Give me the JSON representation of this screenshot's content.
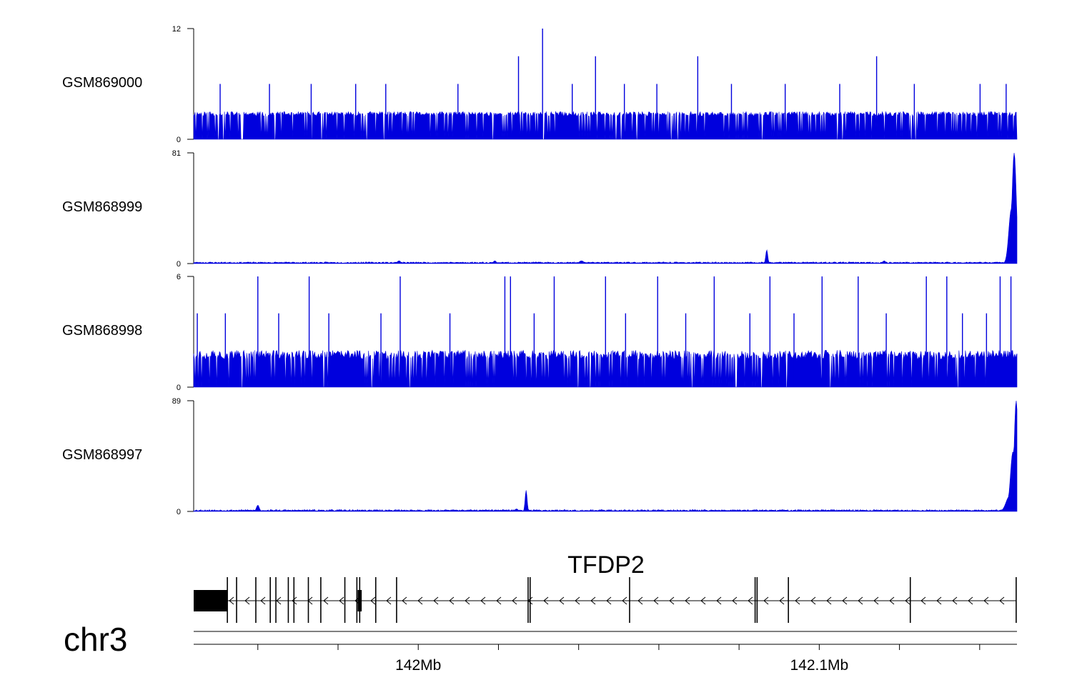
{
  "chart_data": {
    "type": "area",
    "region": {
      "chrom": "chr3",
      "start_mb": 141.9223,
      "end_mb": 142.1276
    },
    "colors": {
      "signal": "#0000dd",
      "axis": "#000000",
      "gene": "#000000"
    },
    "tracks": [
      {
        "name": "GSM869000",
        "ylim": [
          0,
          12
        ],
        "tick_labels": [
          "0",
          "12"
        ],
        "noise": {
          "base": [
            2.5,
            3
          ],
          "seed": 11,
          "zero_gaps": 0.18
        },
        "peaks": [
          {
            "x": 142.0093,
            "y": 12
          },
          {
            "x": 142.0033,
            "y": 9
          },
          {
            "x": 142.0225,
            "y": 9
          },
          {
            "x": 142.048,
            "y": 9
          },
          {
            "x": 142.0926,
            "y": 9
          },
          {
            "x": 141.9289,
            "y": 6
          },
          {
            "x": 141.9412,
            "y": 6
          },
          {
            "x": 141.9516,
            "y": 6
          },
          {
            "x": 141.9627,
            "y": 6
          },
          {
            "x": 141.9702,
            "y": 6
          },
          {
            "x": 141.9882,
            "y": 6
          },
          {
            "x": 142.0167,
            "y": 6
          },
          {
            "x": 142.0297,
            "y": 6
          },
          {
            "x": 142.0378,
            "y": 6
          },
          {
            "x": 142.0564,
            "y": 6
          },
          {
            "x": 142.0698,
            "y": 6
          },
          {
            "x": 142.0834,
            "y": 6
          },
          {
            "x": 142.102,
            "y": 6
          },
          {
            "x": 142.1184,
            "y": 6
          },
          {
            "x": 142.1249,
            "y": 6
          }
        ]
      },
      {
        "name": "GSM868999",
        "ylim": [
          0,
          81
        ],
        "tick_labels": [
          "0",
          "81"
        ],
        "noise": {
          "base": [
            0.3,
            1.2
          ],
          "seed": 23,
          "zero_gaps": 0.0
        },
        "bumps": [
          {
            "x": 142.0652,
            "height": 10,
            "width": 0.00035
          },
          {
            "x": 141.9735,
            "height": 2,
            "width": 0.0006
          },
          {
            "x": 141.9974,
            "height": 2,
            "width": 0.0005
          },
          {
            "x": 142.019,
            "height": 2,
            "width": 0.0008
          },
          {
            "x": 142.0945,
            "height": 2,
            "width": 0.0005
          },
          {
            "x": 142.1269,
            "height": 81,
            "width": 0.00075
          },
          {
            "x": 142.1262,
            "height": 40,
            "width": 0.0009
          }
        ]
      },
      {
        "name": "GSM868998",
        "ylim": [
          0,
          6
        ],
        "tick_labels": [
          "0",
          "6"
        ],
        "noise": {
          "base": [
            1.5,
            2
          ],
          "seed": 37,
          "zero_gaps": 0.12
        },
        "peaks": [
          {
            "x": 141.9383,
            "y": 6
          },
          {
            "x": 141.9511,
            "y": 6
          },
          {
            "x": 141.9738,
            "y": 6
          },
          {
            "x": 141.9999,
            "y": 6
          },
          {
            "x": 142.0013,
            "y": 6
          },
          {
            "x": 142.0122,
            "y": 6
          },
          {
            "x": 142.025,
            "y": 6
          },
          {
            "x": 142.038,
            "y": 6
          },
          {
            "x": 142.0521,
            "y": 6
          },
          {
            "x": 142.066,
            "y": 6
          },
          {
            "x": 142.079,
            "y": 6
          },
          {
            "x": 142.088,
            "y": 6
          },
          {
            "x": 142.105,
            "y": 6
          },
          {
            "x": 142.1101,
            "y": 6
          },
          {
            "x": 142.1234,
            "y": 6
          },
          {
            "x": 142.1261,
            "y": 6
          },
          {
            "x": 141.9232,
            "y": 4
          },
          {
            "x": 141.9302,
            "y": 4
          },
          {
            "x": 141.9435,
            "y": 4
          },
          {
            "x": 141.956,
            "y": 4
          },
          {
            "x": 141.969,
            "y": 4
          },
          {
            "x": 141.9862,
            "y": 4
          },
          {
            "x": 142.0072,
            "y": 4
          },
          {
            "x": 142.03,
            "y": 4
          },
          {
            "x": 142.045,
            "y": 4
          },
          {
            "x": 142.061,
            "y": 4
          },
          {
            "x": 142.072,
            "y": 4
          },
          {
            "x": 142.095,
            "y": 4
          },
          {
            "x": 142.114,
            "y": 4
          },
          {
            "x": 142.12,
            "y": 4
          }
        ]
      },
      {
        "name": "GSM868997",
        "ylim": [
          0,
          89
        ],
        "tick_labels": [
          "0",
          "89"
        ],
        "noise": {
          "base": [
            0.3,
            1.5
          ],
          "seed": 53,
          "zero_gaps": 0.0
        },
        "bumps": [
          {
            "x": 142.0052,
            "height": 17,
            "width": 0.00035
          },
          {
            "x": 141.9383,
            "height": 5,
            "width": 0.0005
          },
          {
            "x": 142.0028,
            "height": 2,
            "width": 0.0006
          },
          {
            "x": 142.1274,
            "height": 89,
            "width": 0.0007
          },
          {
            "x": 142.1266,
            "height": 48,
            "width": 0.0009
          },
          {
            "x": 142.1257,
            "height": 12,
            "width": 0.0012
          }
        ]
      }
    ],
    "gene": {
      "name": "TFDP2",
      "strand": "-",
      "start_mb": 141.9223,
      "end_mb": 142.1274,
      "thick_block": {
        "start_mb": 141.9223,
        "end_mb": 141.9306
      },
      "exons_mb": [
        141.9307,
        141.933,
        141.9378,
        141.9414,
        141.9428,
        141.9459,
        141.9473,
        141.9509,
        141.954,
        141.96,
        141.963,
        141.9637,
        141.9677,
        141.9729,
        142.0057,
        142.0062,
        142.031,
        142.0623,
        142.0628,
        142.0706,
        142.101,
        142.1274
      ],
      "small_exon": {
        "start_mb": 141.9632,
        "end_mb": 141.9642
      }
    },
    "axis": {
      "chrom_label": "chr3",
      "tick_positions_mb": [
        141.9383,
        141.9583,
        141.9783,
        141.9983,
        142.0183,
        142.0383,
        142.0583,
        142.0783,
        142.0983,
        142.1183
      ],
      "labeled_ticks": [
        {
          "x": 141.9783,
          "label": "142Mb"
        },
        {
          "x": 142.0783,
          "label": "142.1Mb"
        }
      ]
    }
  }
}
